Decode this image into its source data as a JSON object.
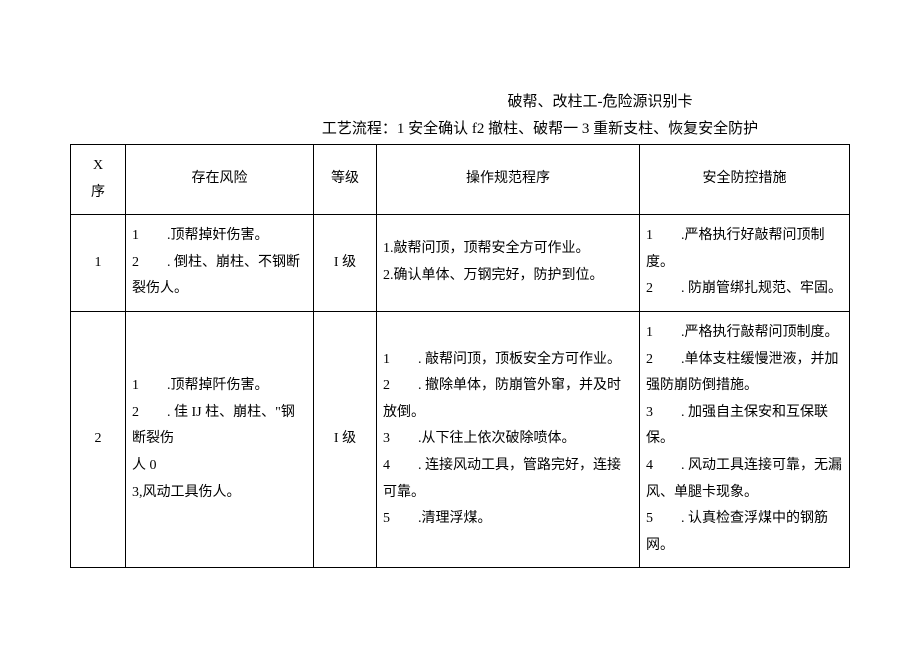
{
  "doc": {
    "title": "破帮、改柱工-危险源识别卡",
    "subtitle": "工艺流程：1 安全确认 f2 撤柱、破帮一 3 重新支柱、恢复安全防护",
    "columns": {
      "seq": "X\n序",
      "risk": "存在风险",
      "level": "等级",
      "proc": "操作规范程序",
      "ctrl": "安全防控措施"
    },
    "rows": [
      {
        "seq": "1",
        "risk": "1　　.顶帮掉奸伤害。\n2　　. 倒柱、崩柱、不钢断裂伤人。",
        "level": "I 级",
        "proc": "1.敲帮问顶，顶帮安全方可作业。\n2.确认单体、万钢完好，防护到位。",
        "ctrl": "1　　.严格执行好敲帮问顶制度。\n2　　. 防崩管绑扎规范、牢固。"
      },
      {
        "seq": "2",
        "risk": "1　　.顶帮掉阡伤害。\n2　　. 佳 IJ 柱、崩柱、\"钢断裂伤\n人 0\n3,风动工具伤人。",
        "level": "I 级",
        "proc": "1　　. 敲帮问顶，顶板安全方可作业。\n2　　. 撤除单体，防崩管外窜，并及时放倒。\n3　　.从下往上依次破除喷体。\n4　　. 连接风动工具，管路完好，连接可靠。\n5　　.清理浮煤。",
        "ctrl": "1　　.严格执行敲帮问顶制度。\n2　　.单体支柱缓慢泄液，并加强防崩防倒措施。\n3　　. 加强自主保安和互保联保。\n4　　. 风动工具连接可靠，无漏风、单腿卡现象。\n5　　. 认真检查浮煤中的钢筋网。"
      }
    ]
  },
  "style": {
    "font_size_pt": 11,
    "line_height": 1.9,
    "border_color": "#000000",
    "background_color": "#ffffff",
    "text_color": "#000000"
  }
}
